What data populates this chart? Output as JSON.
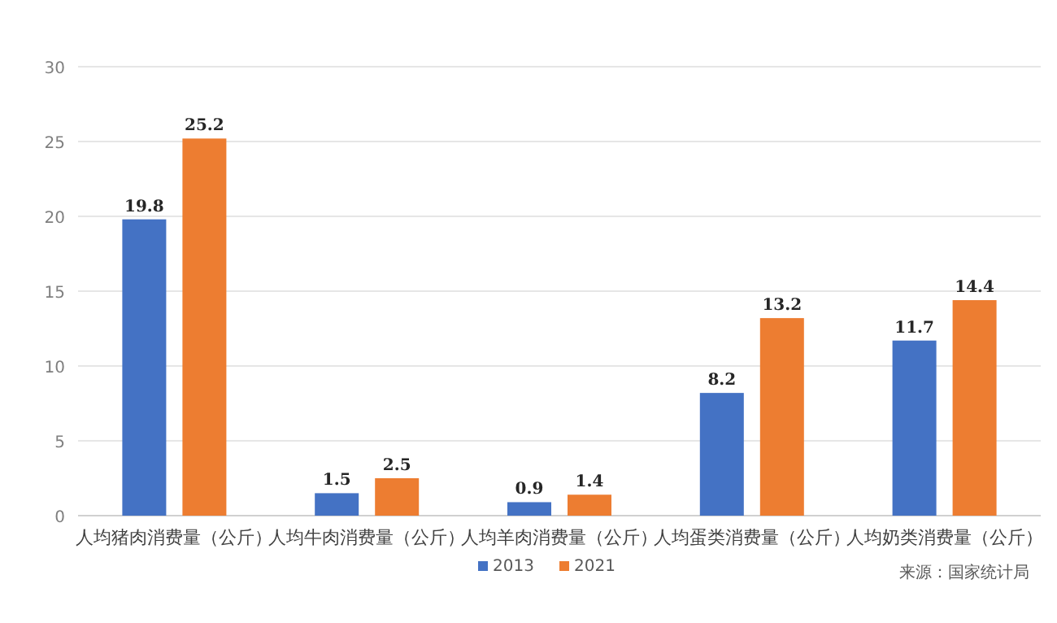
{
  "chart_data": {
    "type": "bar",
    "categories": [
      "人均猪肉消费量（公斤）",
      "人均牛肉消费量（公斤）",
      "人均羊肉消费量（公斤）",
      "人均蛋类消费量（公斤）",
      "人均奶类消费量（公斤）"
    ],
    "series": [
      {
        "name": "2013",
        "color": "#4472c4",
        "values": [
          19.8,
          1.5,
          0.9,
          8.2,
          11.7
        ]
      },
      {
        "name": "2021",
        "color": "#ed7d31",
        "values": [
          25.2,
          2.5,
          1.4,
          13.2,
          14.4
        ]
      }
    ],
    "ylim": [
      0,
      30
    ],
    "yticks": [
      0,
      5,
      10,
      15,
      20,
      25,
      30
    ],
    "grid": "y",
    "legend": "bottom",
    "data_labels": true,
    "annotations": [
      "来源：国家统计局"
    ]
  }
}
